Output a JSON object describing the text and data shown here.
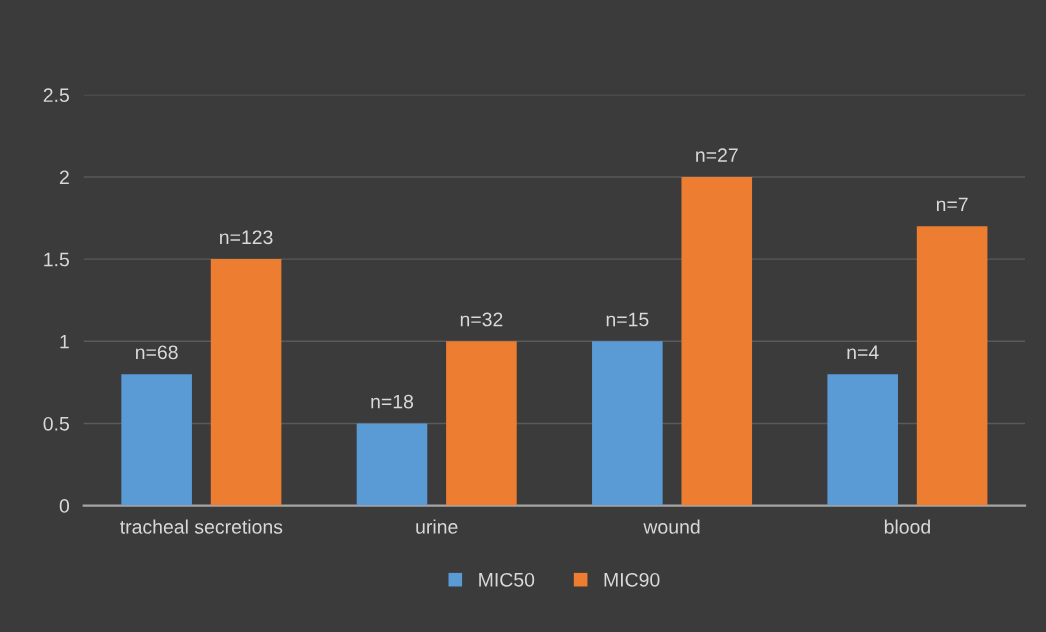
{
  "chart_data": {
    "type": "bar",
    "categories": [
      "tracheal secretions",
      "urine",
      "wound",
      "blood"
    ],
    "series": [
      {
        "name": "MIC50",
        "color": "#5b9bd5",
        "values": [
          0.8,
          0.5,
          1,
          0.8
        ]
      },
      {
        "name": "MIC90",
        "color": "#ed7d31",
        "values": [
          1.5,
          1,
          2,
          1.7
        ]
      }
    ],
    "annotations": [
      "n=68",
      "n=123",
      "n=18",
      "n=32",
      "n=15",
      "n=27",
      "n=4",
      "n=7"
    ],
    "ylim": [
      0,
      2.5
    ],
    "yticks": [
      0,
      0.5,
      1,
      1.5,
      2,
      2.5
    ],
    "grid": "y",
    "legend": "bottom"
  }
}
